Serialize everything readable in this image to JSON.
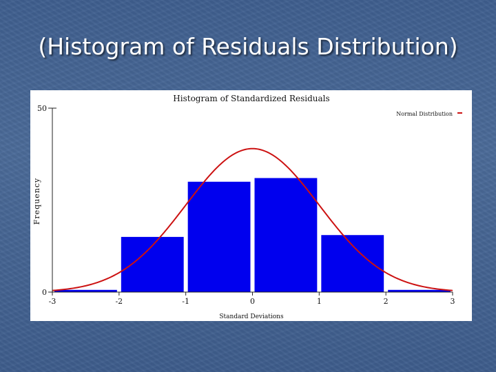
{
  "slide": {
    "title": "(Histogram of Residuals Distribution)"
  },
  "colors": {
    "background": "#4a6a98",
    "bars": "#0000ee",
    "curve": "#cc1111",
    "chart_bg": "#ffffff"
  },
  "chart_data": {
    "type": "bar",
    "title": "Histogram of Standardized Residuals",
    "xlabel": "Standard Deviations",
    "ylabel": "Frequency",
    "xlim": [
      -3,
      3
    ],
    "ylim": [
      0,
      50
    ],
    "x_ticks": [
      "-3",
      "-2",
      "-1",
      "0",
      "1",
      "2",
      "3"
    ],
    "y_ticks": [
      "50",
      "0"
    ],
    "bins": [
      {
        "from": -3,
        "to": -2,
        "value": 0.6
      },
      {
        "from": -2,
        "to": -1,
        "value": 15
      },
      {
        "from": -1,
        "to": 0,
        "value": 30
      },
      {
        "from": 0,
        "to": 1,
        "value": 31
      },
      {
        "from": 1,
        "to": 2,
        "value": 15.5
      },
      {
        "from": 2,
        "to": 3,
        "value": 0.6
      }
    ],
    "curve": {
      "name": "Normal Distribution",
      "mean": 0,
      "sd": 1,
      "peak": 39
    },
    "legend": {
      "position": "top-right",
      "entries": [
        "Normal Distribution"
      ]
    },
    "grid": false
  }
}
